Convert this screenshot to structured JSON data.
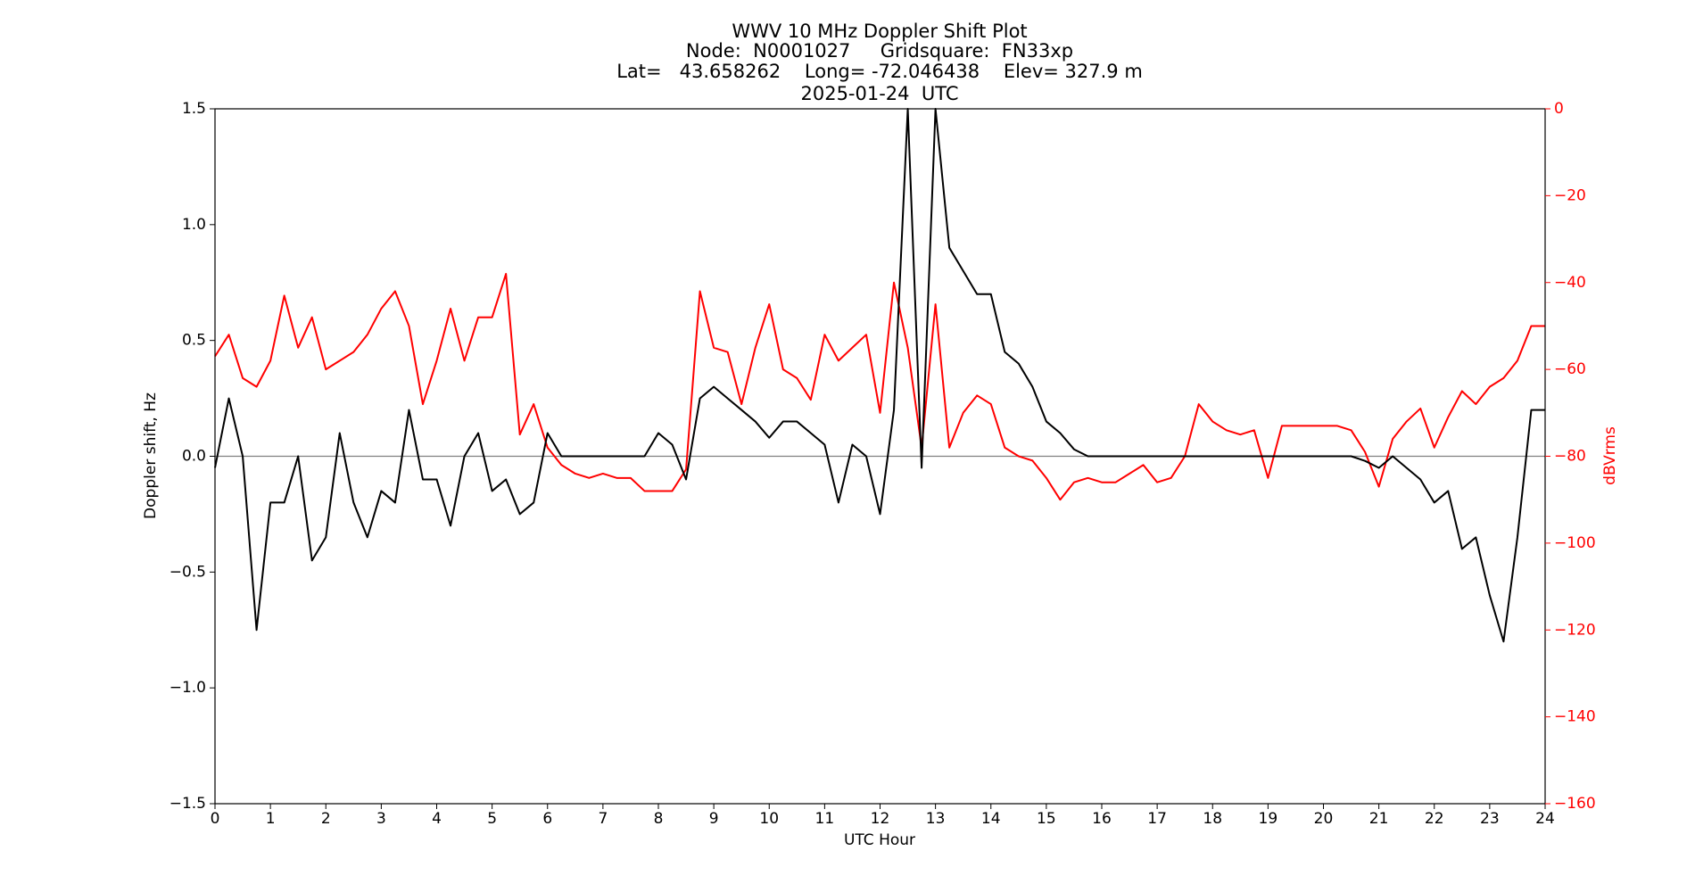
{
  "chart_data": {
    "type": "line",
    "title": [
      "WWV 10 MHz Doppler Shift Plot",
      "Node:  N0001027     Gridsquare:  FN33xp",
      "Lat=   43.658262    Long= -72.046438    Elev= 327.9 m",
      "2025-01-24  UTC"
    ],
    "x_label": "UTC Hour",
    "y_label": "Doppler shift, Hz",
    "y2_label": "dBVrms",
    "xlim": [
      0,
      24
    ],
    "xticks": [
      0,
      1,
      2,
      3,
      4,
      5,
      6,
      7,
      8,
      9,
      10,
      11,
      12,
      13,
      14,
      15,
      16,
      17,
      18,
      19,
      20,
      21,
      22,
      23,
      24
    ],
    "ylim": [
      -1.5,
      1.5
    ],
    "yticks": [
      {
        "value": -1.5,
        "label": "−1.5"
      },
      {
        "value": -1,
        "label": "−1.0"
      },
      {
        "value": -0.5,
        "label": "−0.5"
      },
      {
        "value": 0,
        "label": "0.0"
      },
      {
        "value": 0.5,
        "label": "0.5"
      },
      {
        "value": 1,
        "label": "1.0"
      },
      {
        "value": 1.5,
        "label": "1.5"
      }
    ],
    "y2lim": [
      -160,
      0
    ],
    "y2ticks": [
      {
        "value": -160,
        "label": "−160"
      },
      {
        "value": -140,
        "label": "−140"
      },
      {
        "value": -120,
        "label": "−120"
      },
      {
        "value": -100,
        "label": "−100"
      },
      {
        "value": -80,
        "label": "−80"
      },
      {
        "value": -60,
        "label": "−60"
      },
      {
        "value": -40,
        "label": "−40"
      },
      {
        "value": -20,
        "label": "−20"
      },
      0
    ],
    "y2_color": "#ff0000",
    "hline": 0,
    "hline_color": "#808080",
    "x": [
      0,
      0.25,
      0.5,
      0.75,
      1,
      1.25,
      1.5,
      1.75,
      2,
      2.25,
      2.5,
      2.75,
      3,
      3.25,
      3.5,
      3.75,
      4,
      4.25,
      4.5,
      4.75,
      5,
      5.25,
      5.5,
      5.75,
      6,
      6.25,
      6.5,
      6.75,
      7,
      7.25,
      7.5,
      7.75,
      8,
      8.25,
      8.5,
      8.75,
      9,
      9.25,
      9.5,
      9.75,
      10,
      10.25,
      10.5,
      10.75,
      11,
      11.25,
      11.5,
      11.75,
      12,
      12.25,
      12.5,
      12.75,
      13,
      13.25,
      13.5,
      13.75,
      14,
      14.25,
      14.5,
      14.75,
      15,
      15.25,
      15.5,
      15.75,
      16,
      16.25,
      16.5,
      16.75,
      17,
      17.25,
      17.5,
      17.75,
      18,
      18.25,
      18.5,
      18.75,
      19,
      19.25,
      19.5,
      19.75,
      20,
      20.25,
      20.5,
      20.75,
      21,
      21.25,
      21.5,
      21.75,
      22,
      22.25,
      22.5,
      22.75,
      23,
      23.25,
      23.5,
      23.75,
      24
    ],
    "series": [
      {
        "name": "Doppler shift",
        "color": "#000000",
        "values": [
          -0.05,
          0.25,
          0,
          -0.75,
          -0.2,
          -0.2,
          0,
          -0.45,
          -0.35,
          0.1,
          -0.2,
          -0.35,
          -0.15,
          -0.2,
          0.2,
          -0.1,
          -0.1,
          -0.3,
          0,
          0.1,
          -0.15,
          -0.1,
          -0.25,
          -0.2,
          0.1,
          0,
          0,
          0,
          0,
          0,
          0,
          0,
          0.1,
          0.05,
          -0.1,
          0.25,
          0.3,
          0.25,
          0.2,
          0.15,
          0.08,
          0.15,
          0.15,
          0.1,
          0.05,
          -0.2,
          0.05,
          0,
          -0.25,
          0.2,
          1.5,
          -0.05,
          1.5,
          0.9,
          0.8,
          0.7,
          0.7,
          0.45,
          0.4,
          0.3,
          0.15,
          0.1,
          0.03,
          0,
          0,
          0,
          0,
          0,
          0,
          0,
          0,
          0,
          0,
          0,
          0,
          0,
          0,
          0,
          0,
          0,
          0,
          0,
          0,
          -0.02,
          -0.05,
          0,
          -0.05,
          -0.1,
          -0.2,
          -0.15,
          -0.4,
          -0.35,
          -0.6,
          -0.8,
          -0.35,
          0.2,
          0.2
        ]
      },
      {
        "name": "dBVrms",
        "color": "#ff0000",
        "axis": "y2",
        "values": [
          -57,
          -52,
          -62,
          -64,
          -58,
          -43,
          -55,
          -48,
          -60,
          -58,
          -56,
          -52,
          -46,
          -42,
          -50,
          -68,
          -58,
          -46,
          -58,
          -48,
          -48,
          -38,
          -75,
          -68,
          -78,
          -82,
          -84,
          -85,
          -84,
          -85,
          -85,
          -88,
          -88,
          -88,
          -83,
          -42,
          -55,
          -56,
          -68,
          -55,
          -45,
          -60,
          -62,
          -67,
          -52,
          -58,
          -55,
          -52,
          -70,
          -40,
          -55,
          -78,
          -45,
          -78,
          -70,
          -66,
          -68,
          -78,
          -80,
          -81,
          -85,
          -90,
          -86,
          -85,
          -86,
          -86,
          -84,
          -82,
          -86,
          -85,
          -80,
          -68,
          -72,
          -74,
          -75,
          -74,
          -85,
          -73,
          -73,
          -73,
          -73,
          -73,
          -74,
          -79,
          -87,
          -76,
          -72,
          -69,
          -78,
          -71,
          -65,
          -68,
          -64,
          -62,
          -58,
          -50,
          -50
        ]
      }
    ]
  }
}
